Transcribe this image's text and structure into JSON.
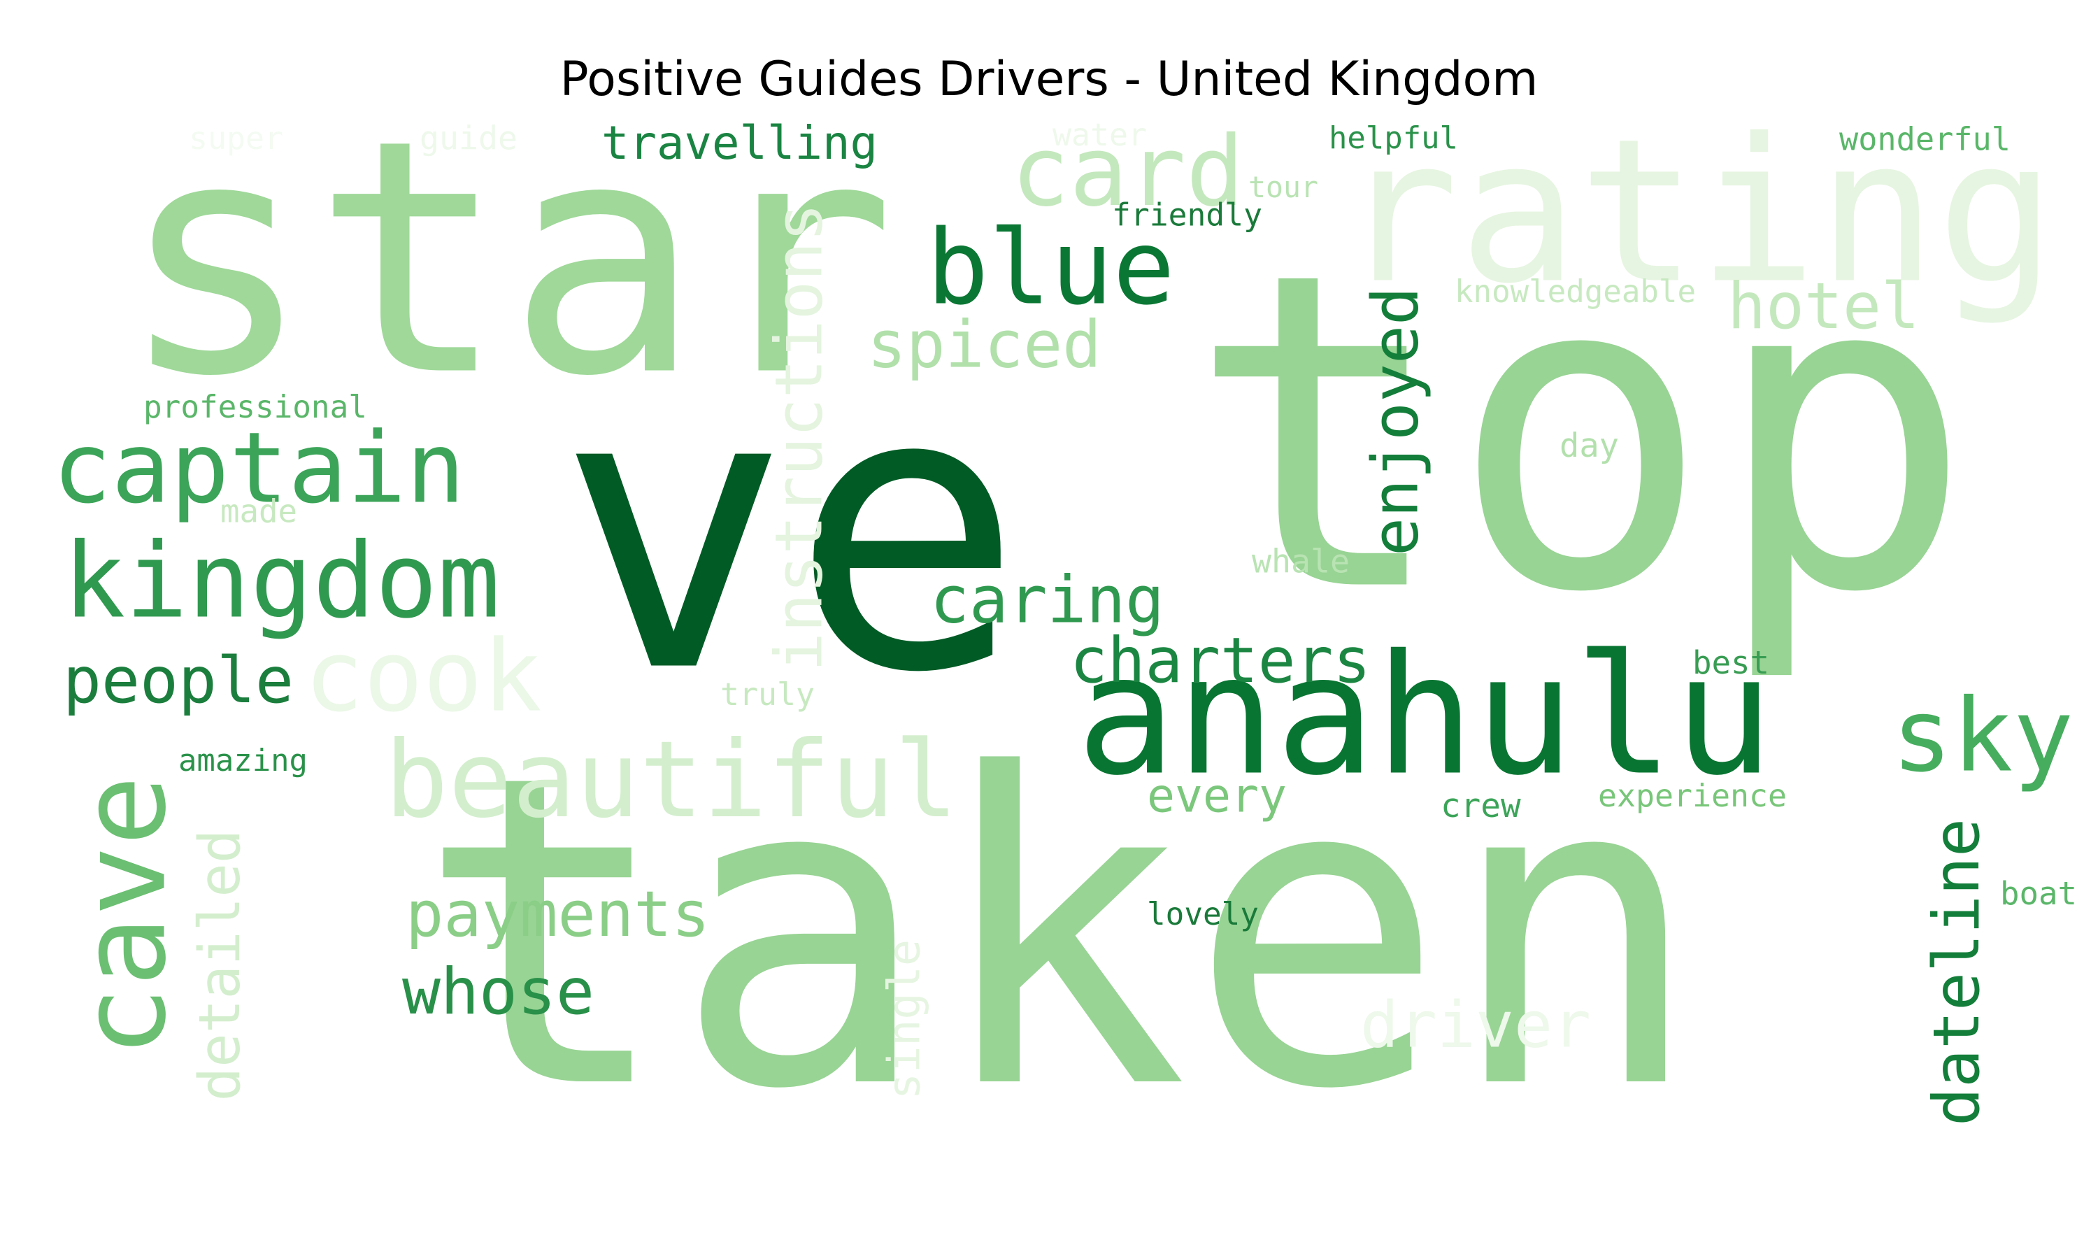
{
  "chart_data": {
    "type": "wordcloud",
    "title": "Positive Guides Drivers - United Kingdom",
    "colormap": "Greens",
    "words": [
      {
        "text": "taken",
        "color": "#98d494"
      },
      {
        "text": "ve",
        "color": "#005b25"
      },
      {
        "text": "top",
        "color": "#98d494"
      },
      {
        "text": "star",
        "color": "#9fd899"
      },
      {
        "text": "rating",
        "color": "#e6f5e1"
      },
      {
        "text": "anahulu",
        "color": "#097532"
      },
      {
        "text": "cave",
        "color": "#6bbf72"
      },
      {
        "text": "card",
        "color": "#c4e8bd"
      },
      {
        "text": "beautiful",
        "color": "#d3eecd"
      },
      {
        "text": "kingdom",
        "color": "#309950"
      },
      {
        "text": "captain",
        "color": "#3ba458"
      },
      {
        "text": "blue",
        "color": "#0b7734"
      },
      {
        "text": "cook",
        "color": "#ebf7e7"
      },
      {
        "text": "sky",
        "color": "#46ad5e"
      },
      {
        "text": "instructions",
        "color": "#e4f4df"
      },
      {
        "text": "dateline",
        "color": "#137e3a"
      },
      {
        "text": "enjoyed",
        "color": "#137e3a"
      },
      {
        "text": "charters",
        "color": "#1b8642"
      },
      {
        "text": "caring",
        "color": "#309950"
      },
      {
        "text": "payments",
        "color": "#8ace87"
      },
      {
        "text": "whose",
        "color": "#289049"
      },
      {
        "text": "spiced",
        "color": "#b1e0ab"
      },
      {
        "text": "hotel",
        "color": "#c4e8bd"
      },
      {
        "text": "travelling",
        "color": "#1a8442"
      },
      {
        "text": "people",
        "color": "#1b7e3d"
      },
      {
        "text": "detailed",
        "color": "#d3eecd"
      },
      {
        "text": "driver",
        "color": "#eef8eb"
      },
      {
        "text": "every",
        "color": "#7bc77c"
      },
      {
        "text": "single",
        "color": "#e6f5e1"
      },
      {
        "text": "helpful",
        "color": "#2a924a"
      },
      {
        "text": "wonderful",
        "color": "#5ab669"
      },
      {
        "text": "friendly",
        "color": "#1a7a3a"
      },
      {
        "text": "tour",
        "color": "#b9e3b3"
      },
      {
        "text": "water",
        "color": "#eef8eb"
      },
      {
        "text": "guide",
        "color": "#eef8eb"
      },
      {
        "text": "super",
        "color": "#f4fbf2"
      },
      {
        "text": "knowledgeable",
        "color": "#c7e9c0"
      },
      {
        "text": "professional",
        "color": "#5ab669"
      },
      {
        "text": "made",
        "color": "#c7e9c0"
      },
      {
        "text": "day",
        "color": "#b2e0ac"
      },
      {
        "text": "whale",
        "color": "#b9e3b3"
      },
      {
        "text": "truly",
        "color": "#c7e9c0"
      },
      {
        "text": "best",
        "color": "#389d53"
      },
      {
        "text": "amazing",
        "color": "#2a924a"
      },
      {
        "text": "crew",
        "color": "#3ba458"
      },
      {
        "text": "experience",
        "color": "#78c679"
      },
      {
        "text": "boat",
        "color": "#5ab669"
      },
      {
        "text": "lovely",
        "color": "#1a7a3a"
      }
    ]
  }
}
